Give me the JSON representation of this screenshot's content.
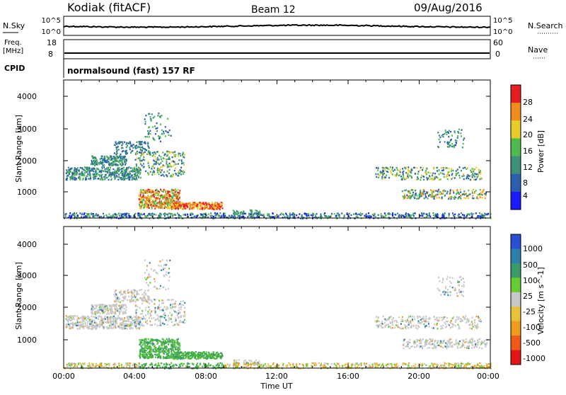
{
  "header": {
    "station": "Kodiak (fitACF)",
    "beam": "Beam 12",
    "date": "09/Aug/2016"
  },
  "strip": {
    "nsky_label": "N.Sky",
    "nsky_ticks": [
      "10^5",
      "10^0"
    ],
    "nsearch_label": "N.Search",
    "nsearch_ticks": [
      "10^5",
      "10^0"
    ],
    "freq_label": "Freq.",
    "freq_unit": "[MHz]",
    "freq_ticks": [
      "18",
      "8"
    ],
    "nave_label": "Nave",
    "nave_ticks": [
      "60",
      "0"
    ],
    "cpid_label": "CPID",
    "cpid_value": "normalsound (fast) 157 RF"
  },
  "chart_data": [
    {
      "type": "heatmap",
      "name": "power",
      "ylabel": "Slant Range [km]",
      "ylim": [
        180,
        4500
      ],
      "yticks": [
        "4000",
        "3000",
        "2000",
        "1000"
      ],
      "colorbar_label": "Power [dB]",
      "colorbar_ticks": [
        "28",
        "24",
        "20",
        "16",
        "12",
        "8",
        "4"
      ],
      "colors": [
        "#1a1aff",
        "#2a5fb0",
        "#3f8f7a",
        "#4fbb4f",
        "#e8cc2a",
        "#f08c1e",
        "#e61e1e"
      ]
    },
    {
      "type": "heatmap",
      "name": "velocity",
      "ylabel": "Slant Range [km]",
      "ylim": [
        180,
        4500
      ],
      "yticks": [
        "4000",
        "3000",
        "2000",
        "1000"
      ],
      "colorbar_label": "Velocity [m s^-1]",
      "colorbar_ticks": [
        "1000",
        "500",
        "100",
        "25",
        "-25",
        "-100",
        "-500",
        "-1000"
      ],
      "colors": [
        "#2a4fd0",
        "#2f7faa",
        "#3a9a6a",
        "#66cc33",
        "#c8c8c8",
        "#e8c23a",
        "#f09a1e",
        "#ee5a1a",
        "#e61414"
      ]
    }
  ],
  "xaxis": {
    "label": "Time UT",
    "ticks": [
      "00:00",
      "04:00",
      "08:00",
      "12:00",
      "16:00",
      "20:00",
      "00:00"
    ]
  }
}
